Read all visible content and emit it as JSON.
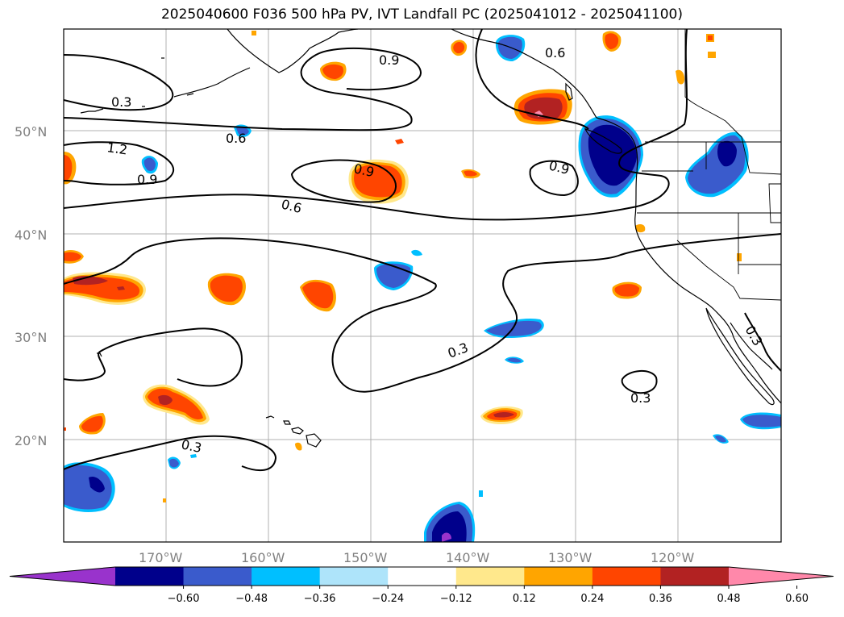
{
  "title": "2025040600 F036 500 hPa PV, IVT Landfall PC (2025041012 - 2025041100)",
  "latitude_labels": [
    "50°N",
    "40°N",
    "30°N",
    "20°N"
  ],
  "longitude_labels": [
    "170°W",
    "160°W",
    "150°W",
    "140°W",
    "130°W",
    "120°W"
  ],
  "colorbar": {
    "ticks": [
      "−0.60",
      "−0.48",
      "−0.36",
      "−0.24",
      "−0.12",
      "0.12",
      "0.24",
      "0.36",
      "0.48",
      "0.60"
    ],
    "colors": [
      "#9933cc",
      "#00008b",
      "#3a5bcc",
      "#00bfff",
      "#aee4fa",
      "#ffffff",
      "#ffe88c",
      "#ffa500",
      "#ff4500",
      "#b22222",
      "#ff88aa"
    ]
  },
  "contour_labels": [
    "0.3",
    "0.6",
    "1.2",
    "0.9",
    "0.9",
    "0.6",
    "0.9",
    "0.6",
    "0.9",
    "0.3",
    "0.3",
    "0.3",
    "0.3"
  ]
}
